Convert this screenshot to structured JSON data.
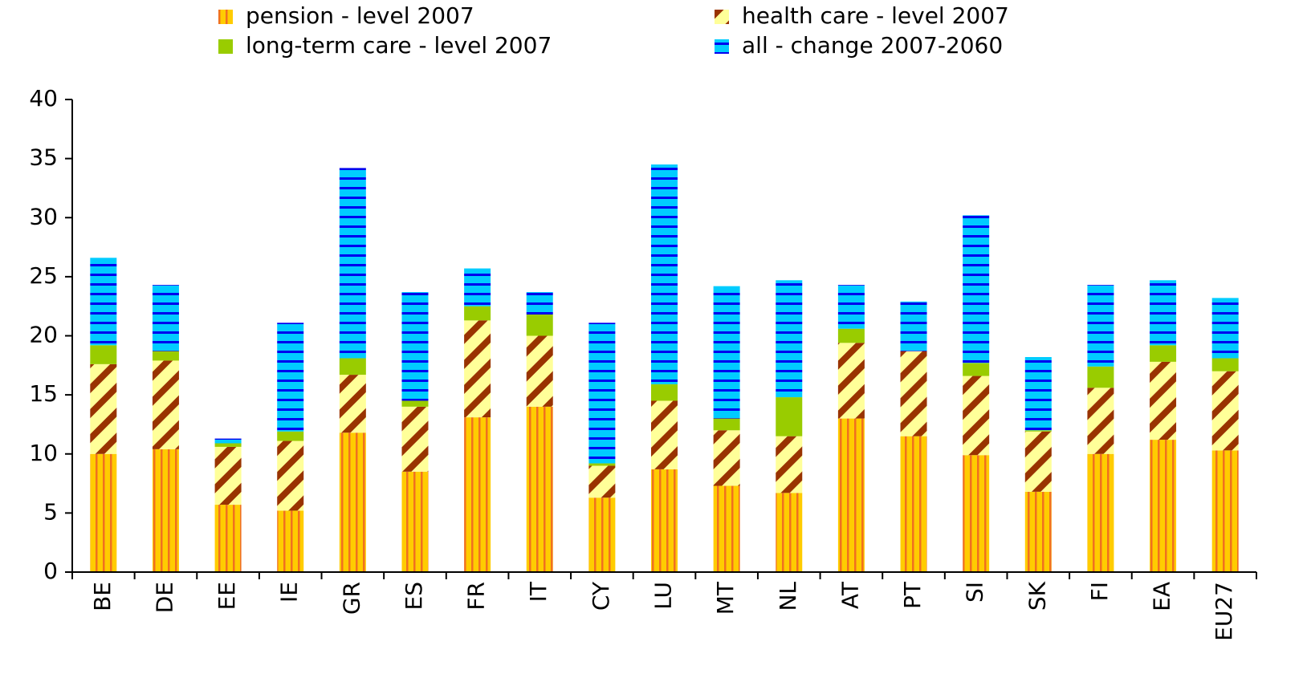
{
  "chart_data": {
    "type": "stacked-bar",
    "categories": [
      "BE",
      "DE",
      "EE",
      "IE",
      "GR",
      "ES",
      "FR",
      "IT",
      "CY",
      "LU",
      "MT",
      "NL",
      "AT",
      "PT",
      "SI",
      "SK",
      "FI",
      "EA",
      "EU27"
    ],
    "series": [
      {
        "name": "pension - level 2007",
        "color": "#ffcc00",
        "values": [
          10.0,
          10.4,
          5.7,
          5.2,
          11.8,
          8.5,
          13.1,
          14.0,
          6.3,
          8.7,
          7.3,
          6.7,
          13.0,
          11.5,
          9.9,
          6.8,
          10.0,
          11.2,
          10.3
        ]
      },
      {
        "name": "health care - level 2007",
        "color": "#ffff99",
        "values": [
          7.6,
          7.5,
          4.9,
          5.9,
          4.9,
          5.5,
          8.2,
          6.0,
          2.7,
          5.8,
          4.7,
          4.8,
          6.4,
          7.2,
          6.7,
          5.1,
          5.6,
          6.6,
          6.7
        ]
      },
      {
        "name": "long-term care - level 2007",
        "color": "#99cc00",
        "values": [
          1.6,
          0.8,
          0.3,
          0.8,
          1.4,
          0.5,
          1.2,
          1.8,
          0.2,
          1.4,
          1.0,
          3.3,
          1.2,
          0.0,
          1.1,
          0.1,
          1.8,
          1.4,
          1.1
        ]
      },
      {
        "name": "all - change 2007-2060",
        "color": "#00ccff",
        "values": [
          7.4,
          5.6,
          0.4,
          9.2,
          16.1,
          9.2,
          3.2,
          1.9,
          11.9,
          18.6,
          11.2,
          9.9,
          3.7,
          4.2,
          12.5,
          6.2,
          6.9,
          5.5,
          5.1
        ]
      }
    ],
    "ylim": [
      0,
      40
    ],
    "yticks": [
      0,
      5,
      10,
      15,
      20,
      25,
      30,
      35,
      40
    ],
    "grid": false
  }
}
